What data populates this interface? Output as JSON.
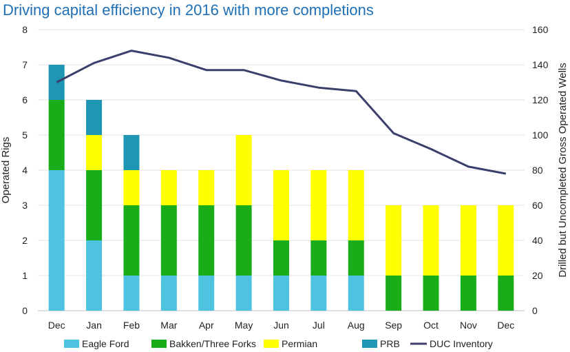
{
  "chart_data": {
    "type": "bar",
    "stacked": true,
    "title": "Driving capital efficiency in 2016 with more completions",
    "categories": [
      "Dec",
      "Jan",
      "Feb",
      "Mar",
      "Apr",
      "May",
      "Jun",
      "Jul",
      "Aug",
      "Sep",
      "Oct",
      "Nov",
      "Dec"
    ],
    "ylabel": "Operated Rigs",
    "y2label": "Drilled but Uncompleted Gross Operated Wells",
    "ylim": [
      0,
      8
    ],
    "y2lim": [
      0,
      160
    ],
    "yticks": [
      "0",
      "1",
      "2",
      "3",
      "4",
      "5",
      "6",
      "7",
      "8"
    ],
    "y2ticks": [
      "0",
      "20",
      "40",
      "60",
      "80",
      "100",
      "120",
      "140",
      "160"
    ],
    "grid": true,
    "legend_position": "bottom",
    "series": [
      {
        "name": "Eagle Ford",
        "type": "bar",
        "axis": "left",
        "color": "#4ec3e0",
        "values": [
          4,
          2,
          1,
          1,
          1,
          1,
          1,
          1,
          1,
          0,
          0,
          0,
          0
        ]
      },
      {
        "name": "Bakken/Three Forks",
        "type": "bar",
        "axis": "left",
        "color": "#19ae19",
        "values": [
          2,
          2,
          2,
          2,
          2,
          2,
          1,
          1,
          1,
          1,
          1,
          1,
          1
        ]
      },
      {
        "name": "Permian",
        "type": "bar",
        "axis": "left",
        "color": "#ffff00",
        "values": [
          0,
          1,
          1,
          1,
          1,
          2,
          2,
          2,
          2,
          2,
          2,
          2,
          2
        ]
      },
      {
        "name": "PRB",
        "type": "bar",
        "axis": "left",
        "color": "#1f96b4",
        "values": [
          1,
          1,
          1,
          0,
          0,
          0,
          0,
          0,
          0,
          0,
          0,
          0,
          0
        ]
      },
      {
        "name": "DUC Inventory",
        "type": "line",
        "axis": "right",
        "color": "#3b3f6b",
        "values": [
          130,
          141,
          148,
          144,
          137,
          137,
          131,
          127,
          125,
          101,
          92,
          82,
          78
        ]
      }
    ]
  }
}
